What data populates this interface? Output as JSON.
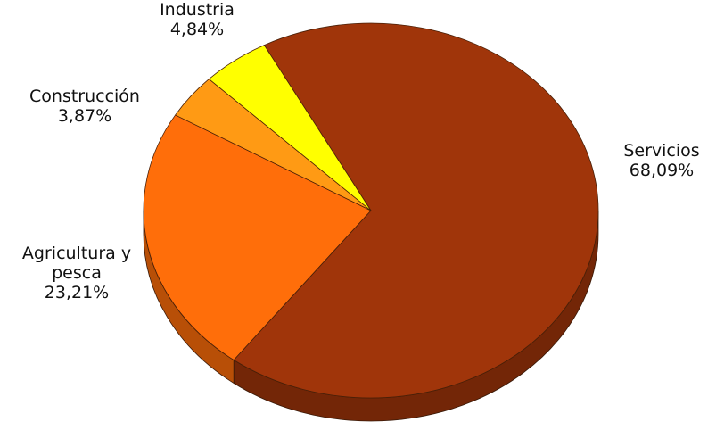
{
  "chart_data": {
    "type": "pie",
    "style": "3d",
    "slices": [
      {
        "label_lines": [
          "Servicios"
        ],
        "value_text": "68,09%",
        "value": 68.09,
        "color": "#A0350A"
      },
      {
        "label_lines": [
          "Agricultura y",
          "pesca"
        ],
        "value_text": "23,21%",
        "value": 23.21,
        "color": "#FF6E0A"
      },
      {
        "label_lines": [
          "Construcción"
        ],
        "value_text": "3,87%",
        "value": 3.87,
        "color": "#FF9A14"
      },
      {
        "label_lines": [
          "Industria"
        ],
        "value_text": "4,84%",
        "value": 4.84,
        "color": "#FFFF00"
      }
    ]
  }
}
